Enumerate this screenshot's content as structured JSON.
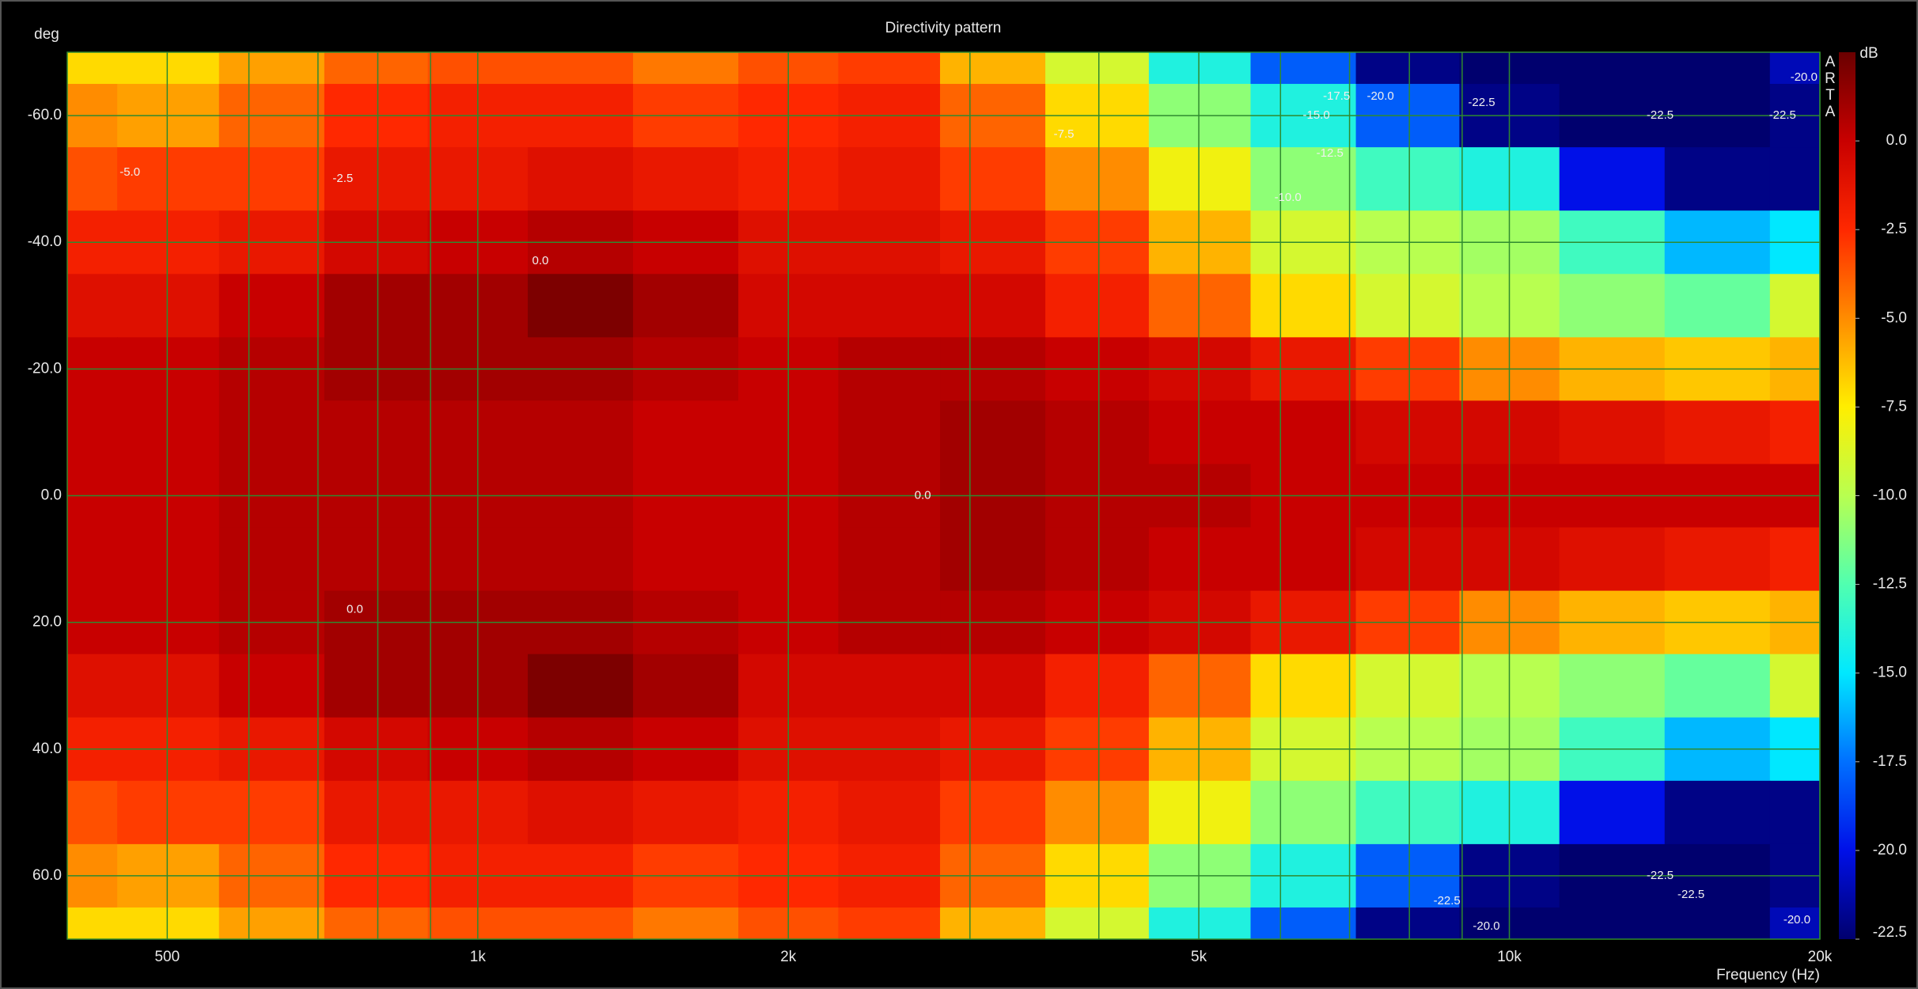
{
  "chart_data": {
    "type": "heatmap",
    "title": "Directivity pattern",
    "y_label": "deg",
    "x_label": "Frequency (Hz)",
    "z_label": "dB",
    "watermark": "ARTA",
    "x": [
      400,
      500,
      630,
      800,
      1000,
      1250,
      1600,
      2000,
      2500,
      3150,
      4000,
      5000,
      6300,
      8000,
      10000,
      12500,
      16000,
      20000
    ],
    "y": [
      -70,
      -60,
      -50,
      -40,
      -30,
      -20,
      -10,
      0,
      10,
      20,
      30,
      40,
      50,
      60,
      70
    ],
    "z": [
      [
        -7,
        -7,
        -5.5,
        -4,
        -3.5,
        -3.5,
        -4.5,
        -3.5,
        -3,
        -6,
        -9,
        -14,
        -18,
        -22,
        -23,
        -23,
        -23,
        -21
      ],
      [
        -5,
        -5.5,
        -4,
        -2.5,
        -2,
        -2,
        -3,
        -2.5,
        -2,
        -4,
        -7,
        -11,
        -14,
        -18,
        -22,
        -23,
        -23,
        -22
      ],
      [
        -3.5,
        -3,
        -3,
        -1.5,
        -1.5,
        -1,
        -1.5,
        -2,
        -1.5,
        -3,
        -5,
        -8,
        -11,
        -13,
        -14,
        -20,
        -22,
        -22
      ],
      [
        -2,
        -2,
        -1.5,
        -0.5,
        0,
        0.5,
        0,
        -1,
        -1,
        -1.5,
        -3,
        -6,
        -9,
        -10,
        -10.5,
        -13,
        -16,
        -15
      ],
      [
        -1,
        -1,
        0,
        1,
        1,
        2,
        1,
        -0.5,
        -0.5,
        -0.5,
        -2,
        -4,
        -7,
        -9,
        -10,
        -11,
        -12,
        -9
      ],
      [
        0,
        0,
        0.5,
        1,
        1,
        1,
        0.5,
        0,
        0.5,
        0.5,
        0,
        -0.5,
        -1.5,
        -3,
        -5,
        -6,
        -6.5,
        -6
      ],
      [
        0,
        0,
        0.5,
        0.5,
        0.5,
        0.5,
        0,
        0,
        0.5,
        1,
        0.5,
        0,
        0,
        -0.5,
        -0.5,
        -1,
        -1.5,
        -2
      ],
      [
        0,
        0,
        0.5,
        0.5,
        0.5,
        0.5,
        0,
        0,
        0.5,
        1,
        0.5,
        0.5,
        0,
        0,
        0,
        0,
        0,
        0
      ],
      [
        0,
        0,
        0.5,
        0.5,
        0.5,
        0.5,
        0,
        0,
        0.5,
        1,
        0.5,
        0,
        0,
        -0.5,
        -0.5,
        -1,
        -1.5,
        -2
      ],
      [
        0,
        0,
        0.5,
        1,
        1,
        1,
        0.5,
        0,
        0.5,
        0.5,
        0,
        -0.5,
        -1.5,
        -3,
        -5,
        -6,
        -6.5,
        -6
      ],
      [
        -1,
        -1,
        0,
        1,
        1,
        2,
        1,
        -0.5,
        -0.5,
        -0.5,
        -2,
        -4,
        -7,
        -9,
        -10,
        -11,
        -12,
        -9
      ],
      [
        -2,
        -2,
        -1.5,
        -0.5,
        0,
        0.5,
        0,
        -1,
        -1,
        -1.5,
        -3,
        -6,
        -9,
        -10,
        -10.5,
        -13,
        -16,
        -15
      ],
      [
        -3.5,
        -3,
        -3,
        -1.5,
        -1.5,
        -1,
        -1.5,
        -2,
        -1.5,
        -3,
        -5,
        -8,
        -11,
        -13,
        -14,
        -20,
        -22,
        -22
      ],
      [
        -5,
        -5.5,
        -4,
        -2.5,
        -2,
        -2,
        -3,
        -2.5,
        -2,
        -4,
        -7,
        -11,
        -14,
        -18,
        -22,
        -23,
        -23,
        -22
      ],
      [
        -7,
        -7,
        -5.5,
        -4,
        -3.5,
        -3.5,
        -4.5,
        -3.5,
        -3,
        -6,
        -9,
        -14,
        -18,
        -22,
        -23,
        -23,
        -23,
        -21
      ]
    ],
    "xlim": [
      400,
      20000
    ],
    "x_log": true,
    "xticks": [
      500,
      {
        "value": 1000,
        "label": "1k"
      },
      {
        "value": 2000,
        "label": "2k"
      },
      {
        "value": 5000,
        "label": "5k"
      },
      {
        "value": 10000,
        "label": "10k"
      },
      {
        "value": 20000,
        "label": "20k"
      }
    ],
    "xminorticks": [
      600,
      700,
      800,
      900,
      3000,
      4000,
      6000,
      7000,
      8000,
      9000
    ],
    "ylim": [
      -70,
      70
    ],
    "y_inverted": true,
    "yticks": [
      {
        "value": -60,
        "label": "-60.0"
      },
      {
        "value": -40,
        "label": "-40.0"
      },
      {
        "value": -20,
        "label": "-20.0"
      },
      {
        "value": 0,
        "label": "0.0"
      },
      {
        "value": 20,
        "label": "20.0"
      },
      {
        "value": 40,
        "label": "40.0"
      },
      {
        "value": 60,
        "label": "60.0"
      }
    ],
    "zlim": [
      -22.5,
      2.5
    ],
    "zticks": [
      {
        "value": 0,
        "label": "0.0"
      },
      {
        "value": -2.5,
        "label": "-2.5"
      },
      {
        "value": -5,
        "label": "-5.0"
      },
      {
        "value": -7.5,
        "label": "-7.5"
      },
      {
        "value": -10,
        "label": "-10.0"
      },
      {
        "value": -12.5,
        "label": "-12.5"
      },
      {
        "value": -15,
        "label": "-15.0"
      },
      {
        "value": -17.5,
        "label": "-17.5"
      },
      {
        "value": -20,
        "label": "-20.0"
      },
      {
        "value": -22.5,
        "label": "-22.5"
      }
    ],
    "colormap": [
      "#6a0000",
      "#c80000",
      "#ff2800",
      "#ff8c00",
      "#ffee00",
      "#b8ff50",
      "#50ffb0",
      "#00e8ff",
      "#0070ff",
      "#0010e8",
      "#00006e"
    ],
    "grid": true,
    "grid_color": "#2f8a2f",
    "annotations": [
      {
        "text": "-5.0",
        "x": 460,
        "y": -51
      },
      {
        "text": "-2.5",
        "x": 740,
        "y": -50
      },
      {
        "text": "0.0",
        "x": 1150,
        "y": -37
      },
      {
        "text": "0.0",
        "x": 2700,
        "y": 0
      },
      {
        "text": "0.0",
        "x": 760,
        "y": 18
      },
      {
        "text": "-7.5",
        "x": 3700,
        "y": -57
      },
      {
        "text": "-17.5",
        "x": 6800,
        "y": -63
      },
      {
        "text": "-20.0",
        "x": 7500,
        "y": -63
      },
      {
        "text": "-15.0",
        "x": 6500,
        "y": -60
      },
      {
        "text": "-12.5",
        "x": 6700,
        "y": -54
      },
      {
        "text": "-10.0",
        "x": 6100,
        "y": -47
      },
      {
        "text": "-22.5",
        "x": 9400,
        "y": -62
      },
      {
        "text": "-22.5",
        "x": 14000,
        "y": -60
      },
      {
        "text": "-22.5",
        "x": 18400,
        "y": -60
      },
      {
        "text": "-20.0",
        "x": 19300,
        "y": -66
      },
      {
        "text": "-22.5",
        "x": 14000,
        "y": 60
      },
      {
        "text": "-22.5",
        "x": 15000,
        "y": 63
      },
      {
        "text": "-22.5",
        "x": 8700,
        "y": 64
      },
      {
        "text": "-20.0",
        "x": 9500,
        "y": 68
      },
      {
        "text": "-20.0",
        "x": 19000,
        "y": 67
      }
    ]
  }
}
